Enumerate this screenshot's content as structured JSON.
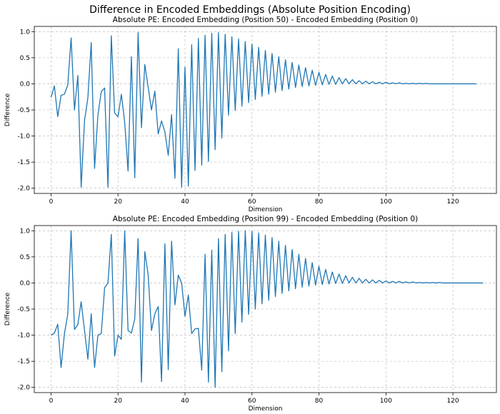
{
  "figure_title": "Difference in Encoded Embeddings (Absolute Position Encoding)",
  "colors": {
    "line": "#1f77b4",
    "grid": "#b0b0b0",
    "axis": "#000000"
  },
  "chart_data": [
    {
      "type": "line",
      "title": "Absolute PE: Encoded Embedding (Position 50) - Encoded Embedding (Position 0)",
      "xlabel": "Dimension",
      "ylabel": "Difference",
      "xlim": [
        -5,
        133
      ],
      "ylim": [
        -2.1,
        1.1
      ],
      "xticks": [
        0,
        20,
        40,
        60,
        80,
        100,
        120
      ],
      "yticks": [
        1.0,
        0.5,
        0.0,
        -0.5,
        -1.0,
        -1.5,
        -2.0
      ],
      "grid": true,
      "x_start": 0,
      "values": [
        -0.26,
        -0.04,
        -0.63,
        -0.22,
        -0.2,
        -0.02,
        0.88,
        -0.5,
        0.16,
        -1.98,
        -0.7,
        -0.27,
        0.79,
        -1.62,
        -0.6,
        -0.15,
        -0.08,
        -1.98,
        0.92,
        -0.56,
        -0.63,
        -0.2,
        -0.74,
        -1.67,
        0.52,
        -1.8,
        0.98,
        -0.84,
        0.37,
        -0.06,
        -0.5,
        -0.14,
        -0.96,
        -0.71,
        -0.92,
        -1.37,
        -0.59,
        -1.81,
        0.67,
        -1.98,
        0.32,
        -1.96,
        0.75,
        -1.66,
        0.87,
        -1.56,
        0.93,
        -1.49,
        0.97,
        -1.26,
        0.98,
        -1.04,
        0.95,
        -0.6,
        0.9,
        -0.51,
        0.86,
        -0.43,
        0.81,
        -0.36,
        0.76,
        -0.3,
        0.7,
        -0.24,
        0.64,
        -0.2,
        0.58,
        -0.16,
        0.52,
        -0.13,
        0.46,
        -0.1,
        0.41,
        -0.07,
        0.36,
        -0.05,
        0.31,
        -0.04,
        0.26,
        -0.03,
        0.22,
        -0.02,
        0.18,
        -0.01,
        0.15,
        -0.01,
        0.12,
        0.0,
        0.1,
        0.0,
        0.08,
        0.0,
        0.06,
        0.0,
        0.05,
        0.0,
        0.04,
        0.0,
        0.03,
        0.0,
        0.03,
        0.0,
        0.02,
        0.0,
        0.02,
        0.0,
        0.01,
        0.0,
        0.01,
        0.0,
        0.01,
        0.0,
        0.01,
        0.0,
        0.0,
        0.0,
        0.0,
        0.0,
        0.0,
        0.0,
        0.0,
        0.0,
        0.0,
        0.0,
        0.0,
        0.0,
        0.0,
        0.0
      ]
    },
    {
      "type": "line",
      "title": "Absolute PE: Encoded Embedding (Position 99) - Encoded Embedding (Position 0)",
      "xlabel": "Dimension",
      "ylabel": "Difference",
      "xlim": [
        -5,
        133
      ],
      "ylim": [
        -2.1,
        1.1
      ],
      "xticks": [
        0,
        20,
        40,
        60,
        80,
        100,
        120
      ],
      "yticks": [
        1.0,
        0.5,
        0.0,
        -0.5,
        -1.0,
        -1.5,
        -2.0
      ],
      "grid": true,
      "x_start": 0,
      "values": [
        -1.0,
        -0.96,
        -0.79,
        -1.62,
        -0.97,
        -0.6,
        1.0,
        -0.89,
        -0.8,
        -0.36,
        -0.91,
        -1.46,
        -0.59,
        -1.62,
        -1.0,
        -0.97,
        -0.09,
        0.0,
        0.93,
        -1.4,
        -1.0,
        -1.08,
        1.0,
        -0.91,
        -0.96,
        -0.69,
        0.85,
        -1.9,
        0.6,
        0.16,
        -0.91,
        -0.59,
        -0.45,
        -1.89,
        0.75,
        -1.66,
        0.8,
        -0.42,
        0.15,
        0.0,
        -0.64,
        -0.23,
        -0.97,
        -0.88,
        -0.87,
        -1.67,
        0.55,
        -1.9,
        0.63,
        -2.0,
        0.85,
        -1.7,
        0.93,
        -1.3,
        0.97,
        -0.97,
        0.99,
        -0.75,
        1.0,
        -0.6,
        0.99,
        -0.5,
        0.96,
        -0.4,
        0.92,
        -0.33,
        0.87,
        -0.26,
        0.8,
        -0.2,
        0.72,
        -0.15,
        0.64,
        -0.11,
        0.55,
        -0.08,
        0.47,
        -0.06,
        0.39,
        -0.04,
        0.32,
        -0.03,
        0.26,
        -0.02,
        0.21,
        -0.01,
        0.17,
        -0.01,
        0.14,
        0.0,
        0.11,
        0.0,
        0.09,
        0.0,
        0.07,
        0.0,
        0.06,
        0.0,
        0.05,
        0.0,
        0.04,
        0.0,
        0.03,
        0.0,
        0.03,
        0.0,
        0.02,
        0.0,
        0.02,
        0.0,
        0.01,
        0.0,
        0.01,
        0.0,
        0.01,
        0.0,
        0.01,
        0.0,
        0.0,
        0.0,
        0.0,
        0.0,
        0.0,
        0.0,
        0.0,
        0.0,
        0.0,
        0.0,
        0.0,
        0.0
      ]
    }
  ]
}
